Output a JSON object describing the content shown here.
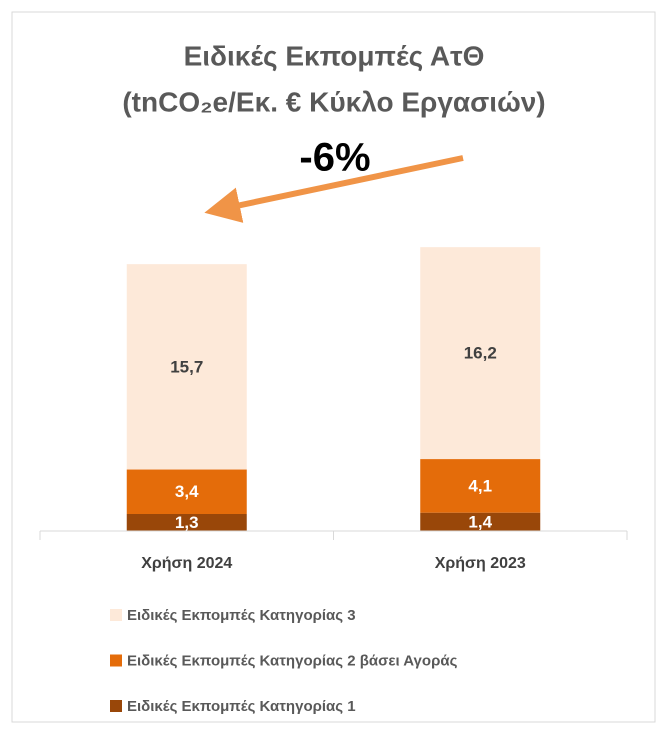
{
  "chart_data": {
    "type": "stacked_bar",
    "title": [
      "Ειδικές Εκπομπές ΑτΘ",
      "(tnCO₂e/Εκ. € Κύκλο Εργασιών)"
    ],
    "annotation": "-6%",
    "categories": [
      "Χρήση 2024",
      "Χρήση 2023"
    ],
    "series": [
      {
        "name": "Ειδικές Εκπομπές Κατηγορίας 1",
        "color": "#994709",
        "label_color": "#ffffff",
        "values": [
          1.3,
          1.4
        ],
        "value_labels": [
          "1,3",
          "1,4"
        ]
      },
      {
        "name": "Ειδικές Εκπομπές Κατηγορίας 2 βάσει Αγοράς",
        "color": "#e46c0a",
        "label_color": "#ffffff",
        "values": [
          3.4,
          4.1
        ],
        "value_labels": [
          "3,4",
          "4,1"
        ]
      },
      {
        "name": "Ειδικές Εκπομπές Κατηγορίας 3",
        "color": "#fde9d9",
        "label_color": "#404040",
        "values": [
          15.7,
          16.2
        ],
        "value_labels": [
          "15,7",
          "16,2"
        ]
      }
    ],
    "ylim": [
      0,
      25
    ]
  }
}
